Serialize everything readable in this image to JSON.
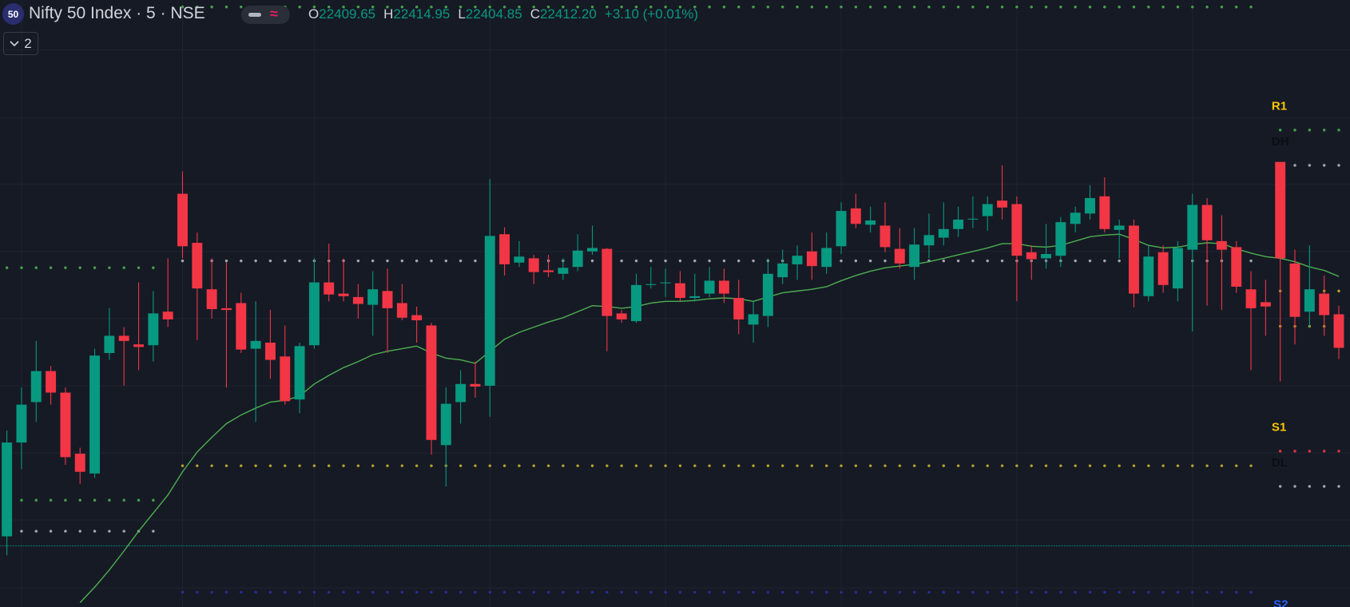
{
  "header": {
    "badge": "50",
    "title": "Nifty 50 Index · 5 · NSE",
    "ohlc": [
      {
        "key": "O",
        "value": "22409.65"
      },
      {
        "key": "H",
        "value": "22414.95"
      },
      {
        "key": "L",
        "value": "22404.85"
      },
      {
        "key": "C",
        "value": "22412.20"
      }
    ],
    "change": "+3.10 (+0.01%)",
    "toggle_count": "2"
  },
  "chart_data": {
    "type": "candlestick",
    "up_color": "#089981",
    "down_color": "#f23645",
    "ylim": [
      22270,
      22411
    ],
    "open": [
      22286.4,
      22308.2,
      22317.6,
      22324.8,
      22319.8,
      22305.6,
      22301,
      22329,
      22333,
      22331,
      22330.8,
      22338.6,
      22366,
      22354.6,
      22343.8,
      22339.4,
      22340.6,
      22330,
      22331.4,
      22328.2,
      22318.2,
      22330.8,
      22345.4,
      22342.8,
      22342,
      22340.2,
      22343.4,
      22340.6,
      22337.8,
      22335.4,
      22307.6,
      22317.6,
      22321.8,
      22321.4,
      22356.6,
      22350,
      22351,
      22348.2,
      22347.4,
      22349,
      22352.6,
      22353.2,
      22338.2,
      22336.4,
      22344.8,
      22345.2,
      22345.2,
      22341.8,
      22342.8,
      22345.8,
      22341.8,
      22335.6,
      22337.6,
      22346.6,
      22349.6,
      22352.6,
      22349,
      22353.8,
      22362.6,
      22358.8,
      22358.6,
      22353.2,
      22349,
      22354,
      22355.8,
      22357.8,
      22360,
      22360.8,
      22364.4,
      22363.6,
      22352.4,
      22351,
      22351.6,
      22359,
      22361.4,
      22365.4,
      22357.6,
      22358.6,
      22342.2,
      22352.4,
      22344,
      22353,
      22363.4,
      22355,
      22353.6,
      22343.8,
      22340.8,
      22373.4,
      22349.8,
      22338.6,
      22342.8,
      22338
    ],
    "high": [
      22311,
      22321,
      22331.8,
      22326,
      22321,
      22307,
      22330,
      22339.4,
      22335,
      22345.4,
      22343.4,
      22351,
      22371.2,
      22357,
      22351,
      22350,
      22343,
      22341,
      22339,
      22335.4,
      22331.4,
      22351,
      22354.4,
      22351,
      22345,
      22348,
      22348.6,
      22345,
      22339.8,
      22336,
      22321,
      22325,
      22327,
      22369.4,
      22358.2,
      22355,
      22351.8,
      22351.8,
      22351,
      22356.6,
      22358.6,
      22353.4,
      22339,
      22347.4,
      22349,
      22348.6,
      22348,
      22347.4,
      22349,
      22348.6,
      22346,
      22341,
      22351,
      22353,
      22354,
      22357,
      22357,
      22364,
      22366,
      22363,
      22364,
      22358,
      22358,
      22361.4,
      22364,
      22363,
      22365.4,
      22365.4,
      22372.6,
      22365.4,
      22354,
      22359,
      22360.6,
      22363,
      22368,
      22369.8,
      22360,
      22360,
      22354,
      22354,
      22355,
      22366,
      22365,
      22361,
      22355,
      22348,
      22346,
      22373.4,
      22353,
      22354,
      22347,
      22340
    ],
    "low": [
      22282,
      22302,
      22313,
      22317,
      22303,
      22298.6,
      22300,
      22327.4,
      22321.4,
      22325,
      22327,
      22335,
      22351,
      22332,
      22337,
      22321,
      22329,
      22313,
      22323,
      22317,
      22315,
      22330,
      22341,
      22341,
      22337,
      22333,
      22329,
      22336.6,
      22331.4,
      22305.4,
      22298,
      22312.6,
      22318.6,
      22314.2,
      22347,
      22349,
      22345,
      22346.6,
      22346,
      22348,
      22351.8,
      22329.4,
      22336,
      22336,
      22344,
      22342,
      22341,
      22341,
      22342,
      22340.6,
      22333.4,
      22331.4,
      22335,
      22345,
      22346,
      22346,
      22347.4,
      22352,
      22358,
      22357,
      22352.4,
      22348.6,
      22346,
      22351,
      22354,
      22356,
      22358,
      22357.4,
      22360,
      22341,
      22346,
      22348.6,
      22349,
      22357,
      22360,
      22357,
      22351,
      22339.6,
      22341,
      22343,
      22341,
      22334,
      22340,
      22339,
      22343,
      22325,
      22333,
      22322.4,
      22331,
      22335,
      22333,
      22327.6
    ],
    "close": [
      22308.2,
      22317,
      22324.8,
      22319.8,
      22304.8,
      22301.4,
      22328.4,
      22333,
      22331.8,
      22330.4,
      22338.2,
      22336.8,
      22353.8,
      22344,
      22339.2,
      22339,
      22329.8,
      22331.8,
      22327.4,
      22317.8,
      22330.6,
      22345.4,
      22342.6,
      22342.2,
      22340.4,
      22343.8,
      22339.4,
      22337.2,
      22336.6,
      22308.8,
      22317.2,
      22321.8,
      22321.2,
      22356.2,
      22349.6,
      22351.4,
      22347.8,
      22347.8,
      22348.8,
      22352.8,
      22353.4,
      22337.6,
      22336.8,
      22344.8,
      22345,
      22345.4,
      22341.8,
      22342.2,
      22345.8,
      22342.8,
      22336.8,
      22338,
      22347.4,
      22349.8,
      22351.6,
      22349.2,
      22353.4,
      22362,
      22359,
      22359.8,
      22353.6,
      22349.8,
      22354.2,
      22356.4,
      22357.8,
      22360,
      22360.2,
      22363.6,
      22362.8,
      22351.6,
      22350.8,
      22352,
      22359.4,
      22361.6,
      22365,
      22357.8,
      22358.6,
      22342.8,
      22351.4,
      22344.8,
      22353.4,
      22363.4,
      22355.2,
      22353,
      22344.4,
      22339.4,
      22339.8,
      22351,
      22337.4,
      22343.8,
      22337.8,
      22330.2
    ],
    "ma": {
      "color": "#4caf50",
      "values": [
        null,
        null,
        null,
        null,
        null,
        22271,
        22274.6,
        22278.6,
        22283,
        22287.6,
        22291.8,
        22296,
        22301.4,
        22306,
        22309.4,
        22312.6,
        22314.6,
        22316.2,
        22317.6,
        22318,
        22319,
        22321.8,
        22323.8,
        22325.6,
        22327,
        22328.6,
        22329.4,
        22330,
        22330.6,
        22329,
        22327.8,
        22327.4,
        22326.6,
        22329.4,
        22332.2,
        22333.8,
        22335,
        22336.2,
        22337.2,
        22338.6,
        22340,
        22339.8,
        22339.4,
        22339.8,
        22340.6,
        22341,
        22341,
        22341.2,
        22341.6,
        22341.8,
        22341.6,
        22341,
        22342,
        22343,
        22343.4,
        22343.8,
        22344.4,
        22345.8,
        22347,
        22348,
        22348.8,
        22349.2,
        22349.6,
        22350.2,
        22351,
        22351.8,
        22352.6,
        22353.4,
        22354.4,
        22354.4,
        22353.8,
        22353.6,
        22354,
        22355,
        22356,
        22356.4,
        22356.6,
        22355.4,
        22354,
        22353.4,
        22353.6,
        22354.2,
        22354.6,
        22354.4,
        22353.2,
        22352.2,
        22351.4,
        22351,
        22350.2,
        22349,
        22348.2,
        22346.8
      ]
    },
    "levels": [
      {
        "value": 22348.8,
        "color": "#4caf50"
      },
      {
        "value": 22294.8,
        "color": "#4caf50"
      },
      {
        "value": 22287.6,
        "color": "#b2b5be"
      },
      {
        "value": 22409.4,
        "color": "#4caf50"
      },
      {
        "value": 22350.4,
        "color": "#b2b5be"
      },
      {
        "value": 22302.8,
        "color": "#c9b52a"
      },
      {
        "value": 22273.4,
        "color": "#2a2ea0"
      },
      {
        "name": "R1",
        "value": 22380.8,
        "color": "#4caf50",
        "label_color": "#f7c600"
      },
      {
        "name": "DH",
        "value": 22372.6,
        "color": "#b2b5be",
        "label_color": "#0c0e14"
      },
      {
        "value": 22343.4,
        "color": "#c9b52a"
      },
      {
        "value": 22335.2,
        "color": "#c9b52a"
      },
      {
        "name": "S1",
        "value": 22306.2,
        "color": "#f23645",
        "label_color": "#f7c600"
      },
      {
        "name": "DL",
        "value": 22298,
        "color": "#b2b5be",
        "label_color": "#0c0e14"
      },
      {
        "value": 22284.2,
        "color": "#089981"
      },
      {
        "name": "S2",
        "label_color": "#2962ff"
      }
    ]
  }
}
